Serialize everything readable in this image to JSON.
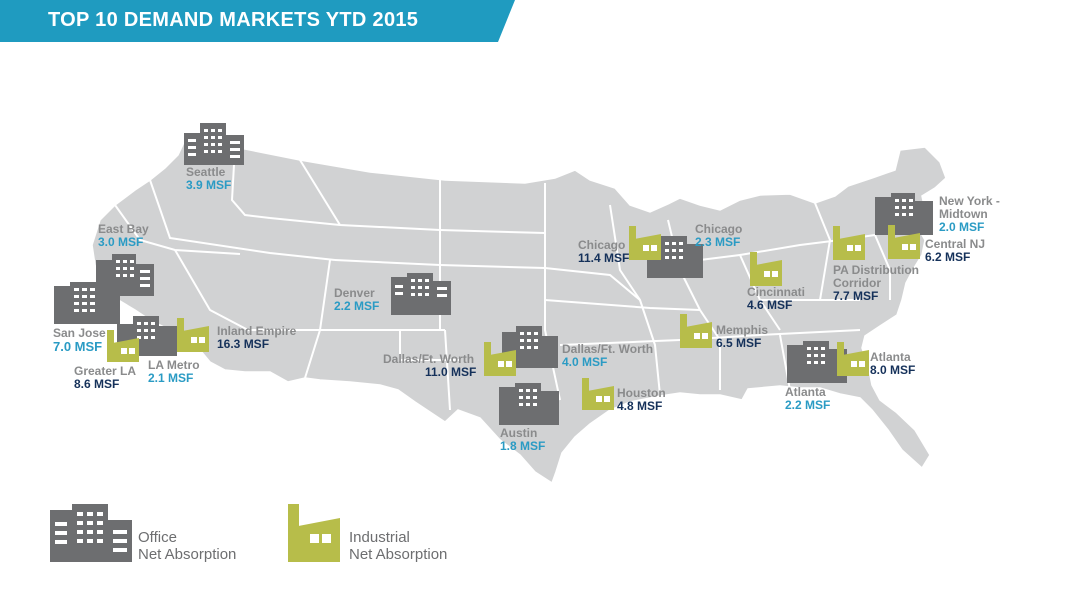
{
  "title": "TOP 10 DEMAND MARKETS YTD 2015",
  "colors": {
    "banner": "#1f9bc0",
    "office": "#6d6e70",
    "industrial": "#b7bd4a",
    "land": "#d1d2d3",
    "borders": "#ffffff"
  },
  "markets": [
    {
      "id": "seattle",
      "name": "Seattle",
      "value": "3.9 MSF",
      "type": "office"
    },
    {
      "id": "east-bay",
      "name": "East Bay",
      "value": "3.0 MSF",
      "type": "office"
    },
    {
      "id": "san-jose",
      "name": "San Jose",
      "value": "7.0 MSF",
      "type": "office"
    },
    {
      "id": "greater-la",
      "name": "Greater LA",
      "value": "8.6 MSF",
      "type": "industrial"
    },
    {
      "id": "la-metro",
      "name": "LA Metro",
      "value": "2.1 MSF",
      "type": "office"
    },
    {
      "id": "inland-empire",
      "name": "Inland Empire",
      "value": "16.3 MSF",
      "type": "industrial"
    },
    {
      "id": "denver",
      "name": "Denver",
      "value": "2.2 MSF",
      "type": "office"
    },
    {
      "id": "dallas-industrial",
      "name": "Dallas/Ft. Worth",
      "value": "11.0 MSF",
      "type": "industrial"
    },
    {
      "id": "dallas-office",
      "name": "Dallas/Ft. Worth",
      "value": "4.0 MSF",
      "type": "office"
    },
    {
      "id": "austin",
      "name": "Austin",
      "value": "1.8 MSF",
      "type": "office"
    },
    {
      "id": "houston",
      "name": "Houston",
      "value": "4.8 MSF",
      "type": "industrial"
    },
    {
      "id": "chicago-industrial",
      "name": "Chicago",
      "value": "11.4 MSF",
      "type": "industrial"
    },
    {
      "id": "chicago-office",
      "name": "Chicago",
      "value": "2.3 MSF",
      "type": "office"
    },
    {
      "id": "cincinnati",
      "name": "Cincinnati",
      "value": "4.6 MSF",
      "type": "industrial"
    },
    {
      "id": "memphis",
      "name": "Memphis",
      "value": "6.5 MSF",
      "type": "industrial"
    },
    {
      "id": "atlanta-industrial",
      "name": "Atlanta",
      "value": "8.0 MSF",
      "type": "industrial"
    },
    {
      "id": "atlanta-office",
      "name": "Atlanta",
      "value": "2.2 MSF",
      "type": "office"
    },
    {
      "id": "pa-distribution",
      "name": "PA Distribution Corridor",
      "value": "7.7 MSF",
      "type": "industrial"
    },
    {
      "id": "central-nj",
      "name": "Central NJ",
      "value": "6.2 MSF",
      "type": "industrial"
    },
    {
      "id": "new-york",
      "name": "New York - Midtown",
      "value": "2.0 MSF",
      "type": "office"
    }
  ],
  "legend": {
    "office": {
      "line1": "Office",
      "line2": "Net Absorption",
      "icon": "office-building-icon"
    },
    "industrial": {
      "line1": "Industrial",
      "line2": "Net Absorption",
      "icon": "factory-icon"
    }
  }
}
